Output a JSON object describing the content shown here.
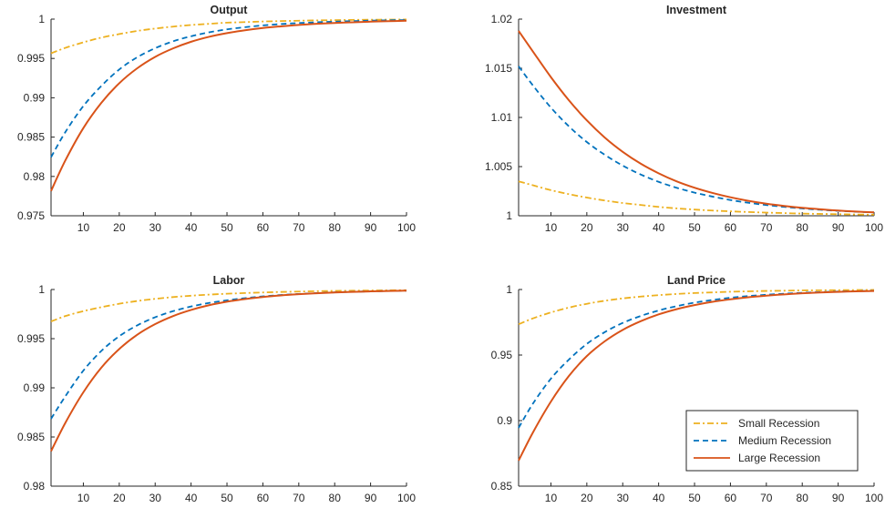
{
  "chart_data": [
    {
      "type": "line",
      "title": "Output",
      "xlim": [
        1,
        100
      ],
      "ylim": [
        0.975,
        1.0
      ],
      "x_ticks": [
        10,
        20,
        30,
        40,
        50,
        60,
        70,
        80,
        90,
        100
      ],
      "y_ticks": [
        0.975,
        0.98,
        0.985,
        0.99,
        0.995,
        1
      ],
      "x_tick_labels": [
        "10",
        "20",
        "30",
        "40",
        "50",
        "60",
        "70",
        "80",
        "90",
        "100"
      ],
      "y_tick_labels": [
        "0.975",
        "0.98",
        "0.985",
        "0.99",
        "0.995",
        "1"
      ],
      "x": [
        1,
        5,
        10,
        15,
        20,
        25,
        30,
        35,
        40,
        45,
        50,
        55,
        60,
        65,
        70,
        75,
        80,
        85,
        90,
        95,
        100
      ],
      "series": [
        {
          "name": "Small Recession",
          "values": [
            0.99565,
            0.99635,
            0.99705,
            0.99765,
            0.9981,
            0.9985,
            0.9988,
            0.99905,
            0.99925,
            0.9994,
            0.99955,
            0.99962,
            0.9997,
            0.99975,
            0.9998,
            0.99984,
            0.99987,
            0.9999,
            0.99992,
            0.99994,
            0.99995
          ]
        },
        {
          "name": "Medium Recession",
          "values": [
            0.98245,
            0.98565,
            0.98895,
            0.9915,
            0.9936,
            0.99515,
            0.9963,
            0.99718,
            0.99782,
            0.99832,
            0.9987,
            0.99897,
            0.9992,
            0.99937,
            0.9995,
            0.9996,
            0.99968,
            0.99975,
            0.9998,
            0.99985,
            0.99988
          ]
        },
        {
          "name": "Large Recession",
          "values": [
            0.97815,
            0.98205,
            0.98615,
            0.98935,
            0.99185,
            0.99375,
            0.9952,
            0.99628,
            0.99712,
            0.99775,
            0.99822,
            0.99858,
            0.99887,
            0.99908,
            0.99926,
            0.9994,
            0.99951,
            0.9996,
            0.99968,
            0.99974,
            0.99979
          ]
        }
      ]
    },
    {
      "type": "line",
      "title": "Investment",
      "xlim": [
        1,
        100
      ],
      "ylim": [
        1.0,
        1.02
      ],
      "x_ticks": [
        10,
        20,
        30,
        40,
        50,
        60,
        70,
        80,
        90,
        100
      ],
      "y_ticks": [
        1,
        1.005,
        1.01,
        1.015,
        1.02
      ],
      "x_tick_labels": [
        "10",
        "20",
        "30",
        "40",
        "50",
        "60",
        "70",
        "80",
        "90",
        "100"
      ],
      "y_tick_labels": [
        "1",
        "1.005",
        "1.01",
        "1.015",
        "1.02"
      ],
      "x": [
        1,
        5,
        10,
        15,
        20,
        25,
        30,
        35,
        40,
        45,
        50,
        55,
        60,
        65,
        70,
        75,
        80,
        85,
        90,
        95,
        100
      ],
      "series": [
        {
          "name": "Small Recession",
          "values": [
            1.0035,
            1.0031,
            1.0026,
            1.0022,
            1.00185,
            1.00155,
            1.0013,
            1.0011,
            1.0009,
            1.00075,
            1.00063,
            1.00053,
            1.00045,
            1.00038,
            1.00032,
            1.00027,
            1.00022,
            1.00019,
            1.00016,
            1.00013,
            1.00011
          ]
        },
        {
          "name": "Medium Recession",
          "values": [
            1.0152,
            1.01325,
            1.011,
            1.0091,
            1.0075,
            1.0062,
            1.0051,
            1.0042,
            1.00345,
            1.00285,
            1.00235,
            1.00195,
            1.0016,
            1.00132,
            1.00109,
            1.0009,
            1.00074,
            1.00061,
            1.0005,
            1.00041,
            1.00034
          ]
        },
        {
          "name": "Large Recession",
          "values": [
            1.0188,
            1.0167,
            1.0141,
            1.01175,
            1.0097,
            1.00795,
            1.0065,
            1.0053,
            1.00432,
            1.0035,
            1.00285,
            1.00232,
            1.00188,
            1.00152,
            1.00123,
            1.001,
            1.00081,
            1.00066,
            1.00053,
            1.00043,
            1.00035
          ]
        }
      ]
    },
    {
      "type": "line",
      "title": "Labor",
      "xlim": [
        1,
        100
      ],
      "ylim": [
        0.98,
        1.0
      ],
      "x_ticks": [
        10,
        20,
        30,
        40,
        50,
        60,
        70,
        80,
        90,
        100
      ],
      "y_ticks": [
        0.98,
        0.985,
        0.99,
        0.995,
        1
      ],
      "x_tick_labels": [
        "10",
        "20",
        "30",
        "40",
        "50",
        "60",
        "70",
        "80",
        "90",
        "100"
      ],
      "y_tick_labels": [
        "0.98",
        "0.985",
        "0.99",
        "0.995",
        "1"
      ],
      "x": [
        1,
        5,
        10,
        15,
        20,
        25,
        30,
        35,
        40,
        45,
        50,
        55,
        60,
        65,
        70,
        75,
        80,
        85,
        90,
        95,
        100
      ],
      "series": [
        {
          "name": "Small Recession",
          "values": [
            0.99675,
            0.9973,
            0.9978,
            0.9982,
            0.99855,
            0.99883,
            0.99905,
            0.99923,
            0.99937,
            0.99948,
            0.99957,
            0.99964,
            0.9997,
            0.99975,
            0.99979,
            0.99983,
            0.99986,
            0.99988,
            0.9999,
            0.99992,
            0.99993
          ]
        },
        {
          "name": "Medium Recession",
          "values": [
            0.98685,
            0.98915,
            0.99175,
            0.99375,
            0.99525,
            0.99635,
            0.99718,
            0.9978,
            0.99827,
            0.99863,
            0.9989,
            0.99912,
            0.9993,
            0.99944,
            0.99955,
            0.99964,
            0.99971,
            0.99977,
            0.99981,
            0.99985,
            0.99988
          ]
        },
        {
          "name": "Large Recession",
          "values": [
            0.98355,
            0.98645,
            0.98955,
            0.99205,
            0.99395,
            0.9954,
            0.99648,
            0.9973,
            0.99792,
            0.9984,
            0.99876,
            0.99903,
            0.99924,
            0.9994,
            0.99952,
            0.99962,
            0.9997,
            0.99976,
            0.99981,
            0.99985,
            0.99988
          ]
        }
      ]
    },
    {
      "type": "line",
      "title": "Land Price",
      "xlim": [
        1,
        100
      ],
      "ylim": [
        0.85,
        1.0
      ],
      "x_ticks": [
        10,
        20,
        30,
        40,
        50,
        60,
        70,
        80,
        90,
        100
      ],
      "y_ticks": [
        0.85,
        0.9,
        0.95,
        1
      ],
      "x_tick_labels": [
        "10",
        "20",
        "30",
        "40",
        "50",
        "60",
        "70",
        "80",
        "90",
        "100"
      ],
      "y_tick_labels": [
        "0.85",
        "0.9",
        "0.95",
        "1"
      ],
      "x": [
        1,
        5,
        10,
        15,
        20,
        25,
        30,
        35,
        40,
        45,
        50,
        55,
        60,
        65,
        70,
        75,
        80,
        85,
        90,
        95,
        100
      ],
      "series": [
        {
          "name": "Small Recession",
          "values": [
            0.9735,
            0.978,
            0.9825,
            0.9862,
            0.9891,
            0.9914,
            0.9932,
            0.9946,
            0.9957,
            0.9966,
            0.9973,
            0.9978,
            0.9983,
            0.9986,
            0.9989,
            0.9991,
            0.9993,
            0.9994,
            0.9995,
            0.9996,
            0.9997
          ]
        },
        {
          "name": "Medium Recession",
          "values": [
            0.8945,
            0.913,
            0.932,
            0.9465,
            0.9585,
            0.9675,
            0.9745,
            0.9798,
            0.984,
            0.9873,
            0.99,
            0.992,
            0.9937,
            0.995,
            0.996,
            0.9968,
            0.9975,
            0.998,
            0.9984,
            0.9987,
            0.999
          ]
        },
        {
          "name": "Large Recession",
          "values": [
            0.8695,
            0.891,
            0.9145,
            0.934,
            0.9492,
            0.9605,
            0.9692,
            0.9758,
            0.981,
            0.985,
            0.9881,
            0.9906,
            0.9925,
            0.9941,
            0.9953,
            0.9963,
            0.9971,
            0.9977,
            0.9982,
            0.9986,
            0.9989
          ]
        }
      ],
      "legend": {
        "position": "bottom-right",
        "entries": [
          "Small Recession",
          "Medium Recession",
          "Large Recession"
        ]
      }
    }
  ],
  "style": {
    "colors": {
      "Small Recession": "#EDB120",
      "Medium Recession": "#0072BD",
      "Large Recession": "#D95319"
    },
    "dash": {
      "Small Recession": "dash-dot",
      "Medium Recession": "dashed",
      "Large Recession": "solid"
    },
    "axis_color": "#262626"
  }
}
